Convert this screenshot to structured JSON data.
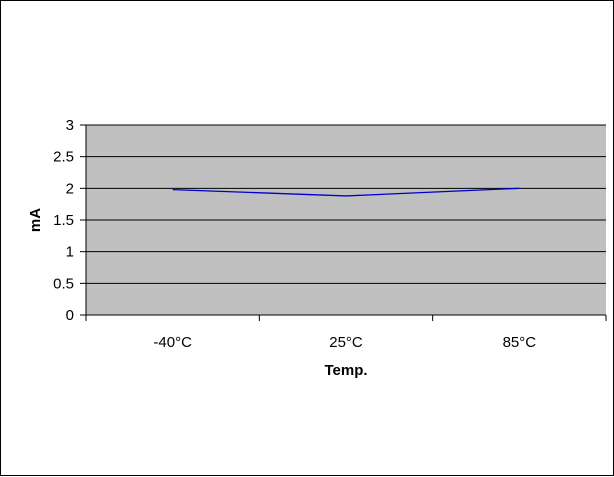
{
  "chart_data": {
    "type": "line",
    "title": "",
    "xlabel": "Temp.",
    "ylabel": "mA",
    "categories": [
      "-40°C",
      "25°C",
      "85°C"
    ],
    "series": [
      {
        "values": [
          1.98,
          1.88,
          2.0
        ],
        "color": "#0000cc"
      }
    ],
    "ylim": [
      0,
      3
    ],
    "yticks": [
      0,
      0.5,
      1,
      1.5,
      2,
      2.5,
      3
    ],
    "ytick_labels": [
      "0",
      "0.5",
      "1",
      "1.5",
      "2",
      "2.5",
      "3"
    ],
    "grid": true,
    "plot_background": "#c0c0c0",
    "gridline_color": "#000000",
    "legend": "none"
  }
}
